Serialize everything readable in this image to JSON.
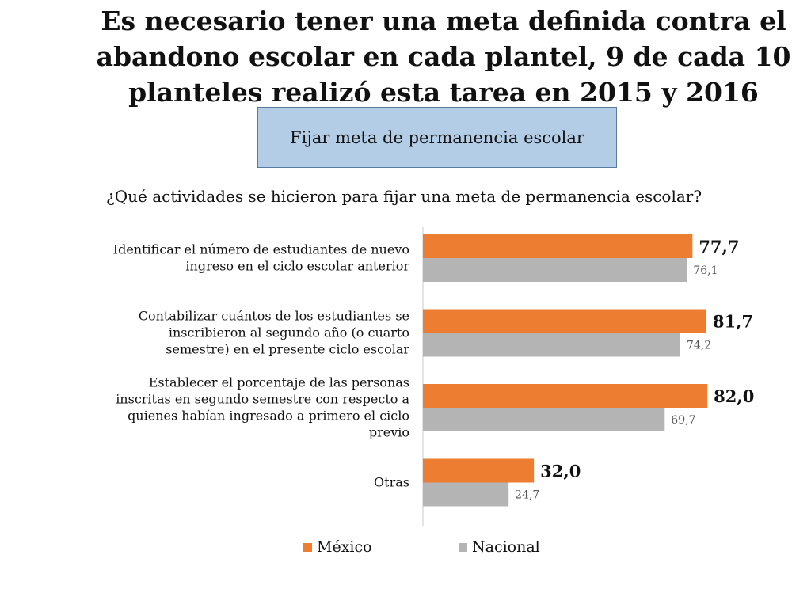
{
  "title_lines": [
    "Es necesario tener una meta definida contra el",
    "abandono escolar en cada plantel, 9 de cada 10",
    "planteles realizó esta tarea en 2015 y 2016"
  ],
  "subtitle_box": "Fijar meta de permanencia escolar",
  "question": "¿Qué actividades se hicieron para fijar una meta de permanencia escolar?",
  "colors": {
    "mexico": "#ed7d31",
    "nacional": "#b4b4b4",
    "box": "#b4cde6"
  },
  "chart_data": {
    "type": "bar",
    "orientation": "horizontal",
    "categories": [
      [
        "Identificar el número de estudiantes de nuevo",
        "ingreso en el ciclo escolar anterior"
      ],
      [
        "Contabilizar cuántos de los estudiantes se",
        "inscribieron al segundo año (o cuarto",
        "semestre) en el presente ciclo escolar"
      ],
      [
        "Establecer el porcentaje de las personas",
        "inscritas en segundo semestre con respecto a",
        "quienes habían ingresado a primero el ciclo",
        "previo"
      ],
      [
        "Otras"
      ]
    ],
    "series": [
      {
        "name": "México",
        "values": [
          77.7,
          81.7,
          82.0,
          32.0
        ],
        "labels": [
          "77,7",
          "81,7",
          "82,0",
          "32,0"
        ]
      },
      {
        "name": "Nacional",
        "values": [
          76.1,
          74.2,
          69.7,
          24.7
        ],
        "labels": [
          "76,1",
          "74,2",
          "69,7",
          "24,7"
        ]
      }
    ],
    "xlim": [
      0,
      88
    ],
    "legend": "bottom"
  }
}
